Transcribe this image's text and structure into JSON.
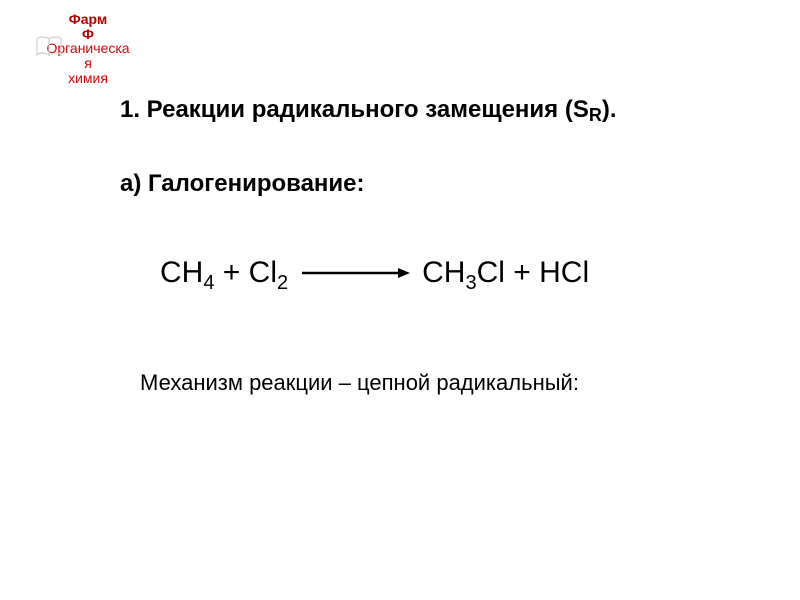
{
  "colors": {
    "logo_text": "#b30000",
    "dept_text": "#cc0a0a",
    "heading_text": "#000000",
    "body_text": "#000000",
    "equation_text": "#000000",
    "arrow_stroke": "#000000",
    "background": "#ffffff",
    "logo_icon": "#d0d0d0"
  },
  "logo": {
    "line1": "Фарм",
    "line2": "Ф"
  },
  "department": {
    "line1": "Органическа",
    "line2": "я",
    "line3": "химия"
  },
  "heading": {
    "prefix": "1. Реакции радикального замещения (S",
    "sr_subscript": "R",
    "suffix": ")."
  },
  "subheading": "а) Галогенирование:",
  "equation": {
    "left_html": "CH<sub>4</sub> + Cl<sub>2</sub>",
    "right_html": "CH<sub>3</sub>Cl + HCl"
  },
  "mechanism": "Механизм реакции – цепной радикальный:"
}
